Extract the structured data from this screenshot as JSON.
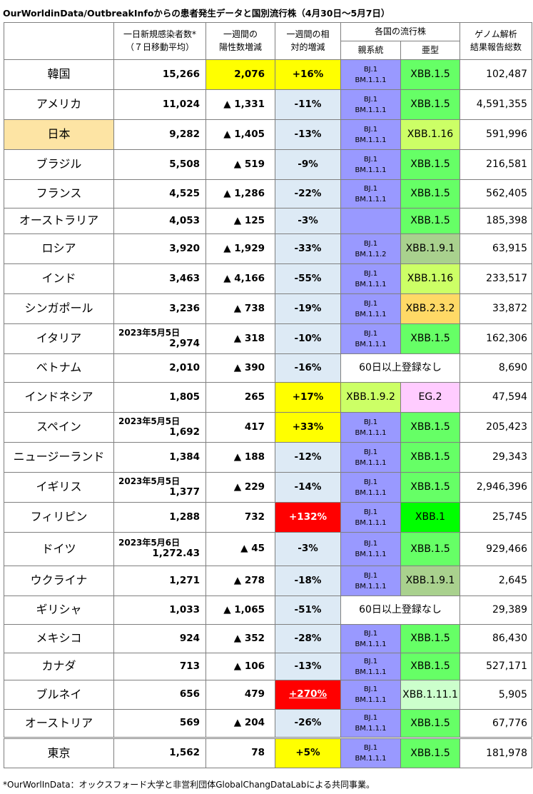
{
  "title": "OurWorldinData/OutbreakInfoからの患者発生データと国別流行株（4月30日～5月7日）",
  "header": {
    "cases_line1": "一日新規感染者数*",
    "cases_line2": "（７日移動平均）",
    "delta_line1": "一週間の",
    "delta_line2": "陽性数増減",
    "ratio_line1": "一週間の相",
    "ratio_line2": "対的増減",
    "strains": "各国の流行株",
    "parent": "親系統",
    "sub": "亜型",
    "genome_line1": "ゲノム解析",
    "genome_line2": "結果報告総数"
  },
  "colors": {
    "parent_bg": "#9999ff",
    "yellow": "#ffff00",
    "red": "#ff0000",
    "light_blue": "#ddeaf5",
    "country_highlight": "#fde4a4",
    "XBB.1.5": "#66ff66",
    "XBB.1.16": "#ccff66",
    "XBB.1.9.1": "#a9d18e",
    "XBB.2.3.2": "#ffd966",
    "XBB.1.9.2": "#ccff66",
    "EG.2": "#ffccff",
    "XBB.1": "#00ff00",
    "XBB.1.11.1": "#ccffcc"
  },
  "rows": [
    {
      "country": "韓国",
      "cases": "15,266",
      "delta": "2,076",
      "delta_bg": "yellow",
      "ratio": "+16%",
      "ratio_bg": "yellow",
      "parent": [
        "BJ.1",
        "BM.1.1.1"
      ],
      "sub": "XBB.1.5",
      "total": "102,487"
    },
    {
      "country": "アメリカ",
      "cases": "11,024",
      "delta": "▲ 1,331",
      "ratio": "-11%",
      "ratio_bg": "blue",
      "parent": [
        "BJ.1",
        "BM.1.1.1"
      ],
      "sub": "XBB.1.5",
      "total": "4,591,355"
    },
    {
      "country": "日本",
      "highlight": true,
      "cases": "9,282",
      "delta": "▲ 1,405",
      "ratio": "-13%",
      "ratio_bg": "blue",
      "parent": [
        "BJ.1",
        "BM.1.1.1"
      ],
      "sub": "XBB.1.16",
      "total": "591,996"
    },
    {
      "country": "ブラジル",
      "cases": "5,508",
      "delta": "▲ 519",
      "ratio": "-9%",
      "ratio_bg": "blue",
      "parent": [
        "BJ.1",
        "BM.1.1.1"
      ],
      "sub": "XBB.1.5",
      "total": "216,581"
    },
    {
      "country": "フランス",
      "cases": "4,525",
      "delta": "▲ 1,286",
      "ratio": "-22%",
      "ratio_bg": "blue",
      "parent": [
        "BJ.1",
        "BM.1.1.1"
      ],
      "sub": "XBB.1.5",
      "total": "562,405"
    },
    {
      "country": "オーストラリア",
      "cases": "4,053",
      "delta": "▲ 125",
      "ratio": "-3%",
      "ratio_bg": "blue",
      "parent": [],
      "sub": "XBB.1.5",
      "total": "185,398"
    },
    {
      "country": "ロシア",
      "cases": "3,920",
      "delta": "▲ 1,929",
      "ratio": "-33%",
      "ratio_bg": "blue",
      "parent": [
        "BJ.1",
        "BM.1.1.2"
      ],
      "sub": "XBB.1.9.1",
      "total": "63,915"
    },
    {
      "country": "インド",
      "cases": "3,463",
      "delta": "▲ 4,166",
      "ratio": "-55%",
      "ratio_bg": "blue",
      "parent": [
        "BJ.1",
        "BM.1.1.1"
      ],
      "sub": "XBB.1.16",
      "total": "233,517"
    },
    {
      "country": "シンガポール",
      "cases": "3,236",
      "delta": "▲ 738",
      "ratio": "-19%",
      "ratio_bg": "blue",
      "parent": [
        "BJ.1",
        "BM.1.1.1"
      ],
      "sub": "XBB.2.3.2",
      "total": "33,872"
    },
    {
      "country": "イタリア",
      "date": "2023年5月5日",
      "cases": "2,974",
      "delta": "▲ 318",
      "ratio": "-10%",
      "ratio_bg": "blue",
      "parent": [
        "BJ.1",
        "BM.1.1.1"
      ],
      "sub": "XBB.1.5",
      "total": "162,306"
    },
    {
      "country": "ベトナム",
      "cases": "2,010",
      "delta": "▲ 390",
      "ratio": "-16%",
      "ratio_bg": "blue",
      "nodata": "60日以上登録なし",
      "total": "8,690"
    },
    {
      "country": "インドネシア",
      "cases": "1,805",
      "delta": "265",
      "ratio": "+17%",
      "ratio_bg": "yellow",
      "parent_text": "XBB.1.9.2",
      "sub": "EG.2",
      "total": "47,594"
    },
    {
      "country": "スペイン",
      "date": "2023年5月5日",
      "cases": "1,692",
      "delta": "417",
      "ratio": "+33%",
      "ratio_bg": "yellow",
      "parent": [
        "BJ.1",
        "BM.1.1.1"
      ],
      "sub": "XBB.1.5",
      "total": "205,423"
    },
    {
      "country": "ニュージーランド",
      "cases": "1,384",
      "delta": "▲ 188",
      "ratio": "-12%",
      "ratio_bg": "blue",
      "parent": [
        "BJ.1",
        "BM.1.1.1"
      ],
      "sub": "XBB.1.5",
      "total": "29,343"
    },
    {
      "country": "イギリス",
      "date": "2023年5月5日",
      "cases": "1,377",
      "delta": "▲ 229",
      "ratio": "-14%",
      "ratio_bg": "blue",
      "parent": [
        "BJ.1",
        "BM.1.1.1"
      ],
      "sub": "XBB.1.5",
      "total": "2,946,396"
    },
    {
      "country": "フィリピン",
      "cases": "1,288",
      "delta": "732",
      "ratio": "+132%",
      "ratio_bg": "red",
      "parent": [
        "BJ.1",
        "BM.1.1.1"
      ],
      "sub": "XBB.1",
      "total": "25,745"
    },
    {
      "country": "ドイツ",
      "date": "2023年5月6日",
      "cases": "1,272.43",
      "delta": "▲ 45",
      "ratio": "-3%",
      "ratio_bg": "blue",
      "parent": [
        "BJ.1",
        "BM.1.1.1"
      ],
      "sub": "XBB.1.5",
      "total": "929,466"
    },
    {
      "country": "ウクライナ",
      "cases": "1,271",
      "delta": "▲ 278",
      "ratio": "-18%",
      "ratio_bg": "blue",
      "parent": [
        "BJ.1",
        "BM.1.1.1"
      ],
      "sub": "XBB.1.9.1",
      "total": "2,645"
    },
    {
      "country": "ギリシャ",
      "cases": "1,033",
      "delta": "▲ 1,065",
      "ratio": "-51%",
      "ratio_bg": "blue",
      "nodata": "60日以上登録なし",
      "total": "29,389"
    },
    {
      "country": "メキシコ",
      "cases": "924",
      "delta": "▲ 352",
      "ratio": "-28%",
      "ratio_bg": "blue",
      "parent": [
        "BJ.1",
        "BM.1.1.1"
      ],
      "sub": "XBB.1.5",
      "total": "86,430"
    },
    {
      "country": "カナダ",
      "cases": "713",
      "delta": "▲ 106",
      "ratio": "-13%",
      "ratio_bg": "blue",
      "parent": [
        "BJ.1",
        "BM.1.1.1"
      ],
      "sub": "XBB.1.5",
      "total": "527,171"
    },
    {
      "country": "ブルネイ",
      "cases": "656",
      "delta": "479",
      "ratio": "+270%",
      "ratio_bg": "red",
      "ratio_underline": true,
      "parent": [
        "BJ.1",
        "BM.1.1.1"
      ],
      "sub": "XBB.1.11.1",
      "total": "5,905"
    },
    {
      "country": "オーストリア",
      "cases": "569",
      "delta": "▲ 204",
      "ratio": "-26%",
      "ratio_bg": "blue",
      "parent": [
        "BJ.1",
        "BM.1.1.1"
      ],
      "sub": "XBB.1.5",
      "total": "67,776"
    },
    {
      "country": "東京",
      "separator": true,
      "cases": "1,562",
      "delta": "78",
      "ratio": "+5%",
      "ratio_bg": "yellow",
      "parent": [
        "BJ.1",
        "BM.1.1.1"
      ],
      "sub": "XBB.1.5",
      "total": "181,978"
    }
  ],
  "footnote": "*OurWorlInData：オックスフォード大学と非営利団体GlobalChangDataLabによる共同事業。"
}
